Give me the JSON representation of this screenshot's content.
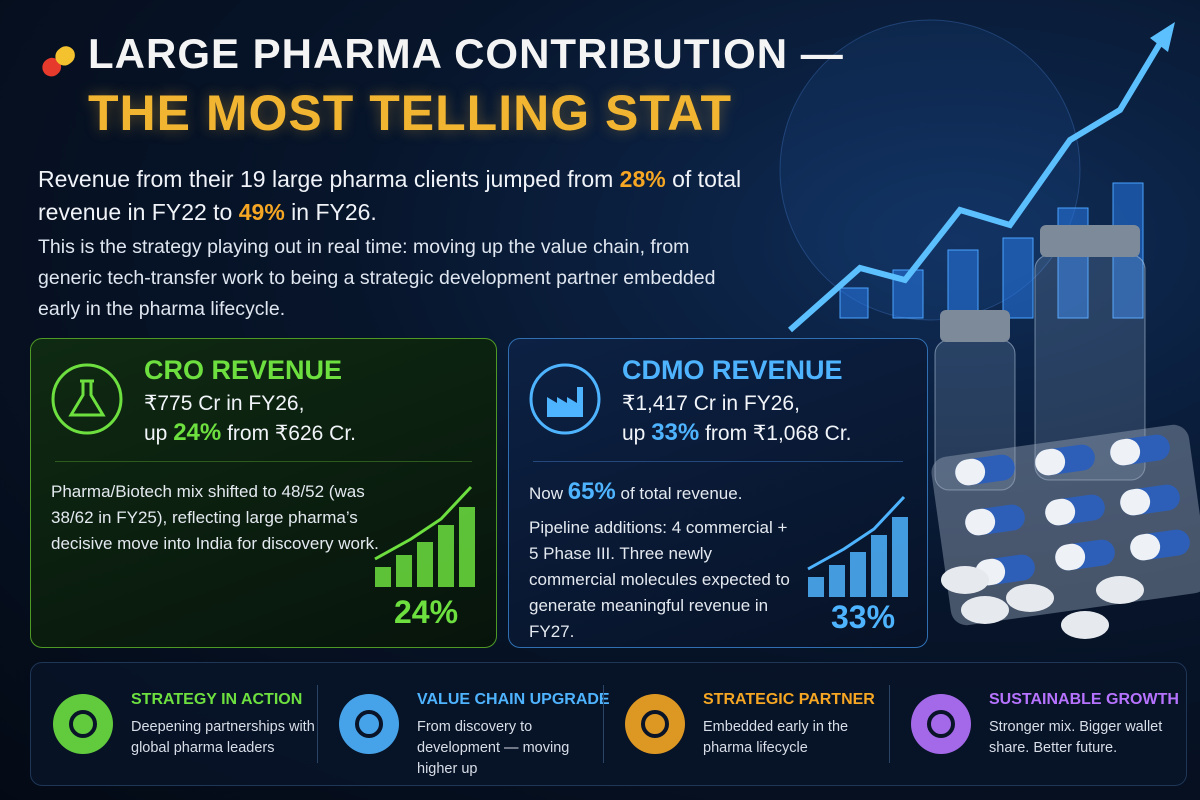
{
  "header": {
    "title_line1": "LARGE PHARMA CONTRIBUTION —",
    "title_line2": "THE MOST TELLING STAT"
  },
  "intro": {
    "headline": [
      "Revenue from their 19 large pharma clients jumped from ",
      "28%",
      " of total revenue in FY22 to ",
      "49%",
      " in FY26."
    ],
    "body": "This is the strategy playing out in real time: moving up the value chain, from generic tech-transfer work to being a strategic development partner embedded early in the pharma lifecycle."
  },
  "cards": [
    {
      "title": "CRO REVENUE",
      "line1": "₹775 Cr in FY26,",
      "line2": [
        "up ",
        "24%",
        " from ₹626 Cr."
      ],
      "body": [
        [
          "Pharma/Biotech mix shifted to 48/52 (was 38/62 in FY25), reflecting large pharma’s decisive move into India for discovery work."
        ]
      ],
      "badge": "24%"
    },
    {
      "title": "CDMO REVENUE",
      "line1": "₹1,417 Cr in FY26,",
      "line2": [
        "up ",
        "33%",
        " from ₹1,068 Cr."
      ],
      "body": [
        [
          "Now ",
          "65%",
          " of total revenue."
        ],
        [
          "Pipeline additions: 4 commercial + 5 Phase III. Three newly commercial molecules expected to generate meaningful revenue in FY27."
        ]
      ],
      "badge": "33%"
    }
  ],
  "footer": [
    {
      "title": "STRATEGY IN ACTION",
      "text": "Deepening partnerships with global pharma leaders"
    },
    {
      "title": "VALUE CHAIN UPGRADE",
      "text": "From discovery to development — moving higher up"
    },
    {
      "title": "STRATEGIC PARTNER",
      "text": "Embedded early in the pharma lifecycle"
    },
    {
      "title": "SUSTAINABLE GROWTH",
      "text": "Stronger mix. Bigger wallet share. Better future."
    }
  ]
}
